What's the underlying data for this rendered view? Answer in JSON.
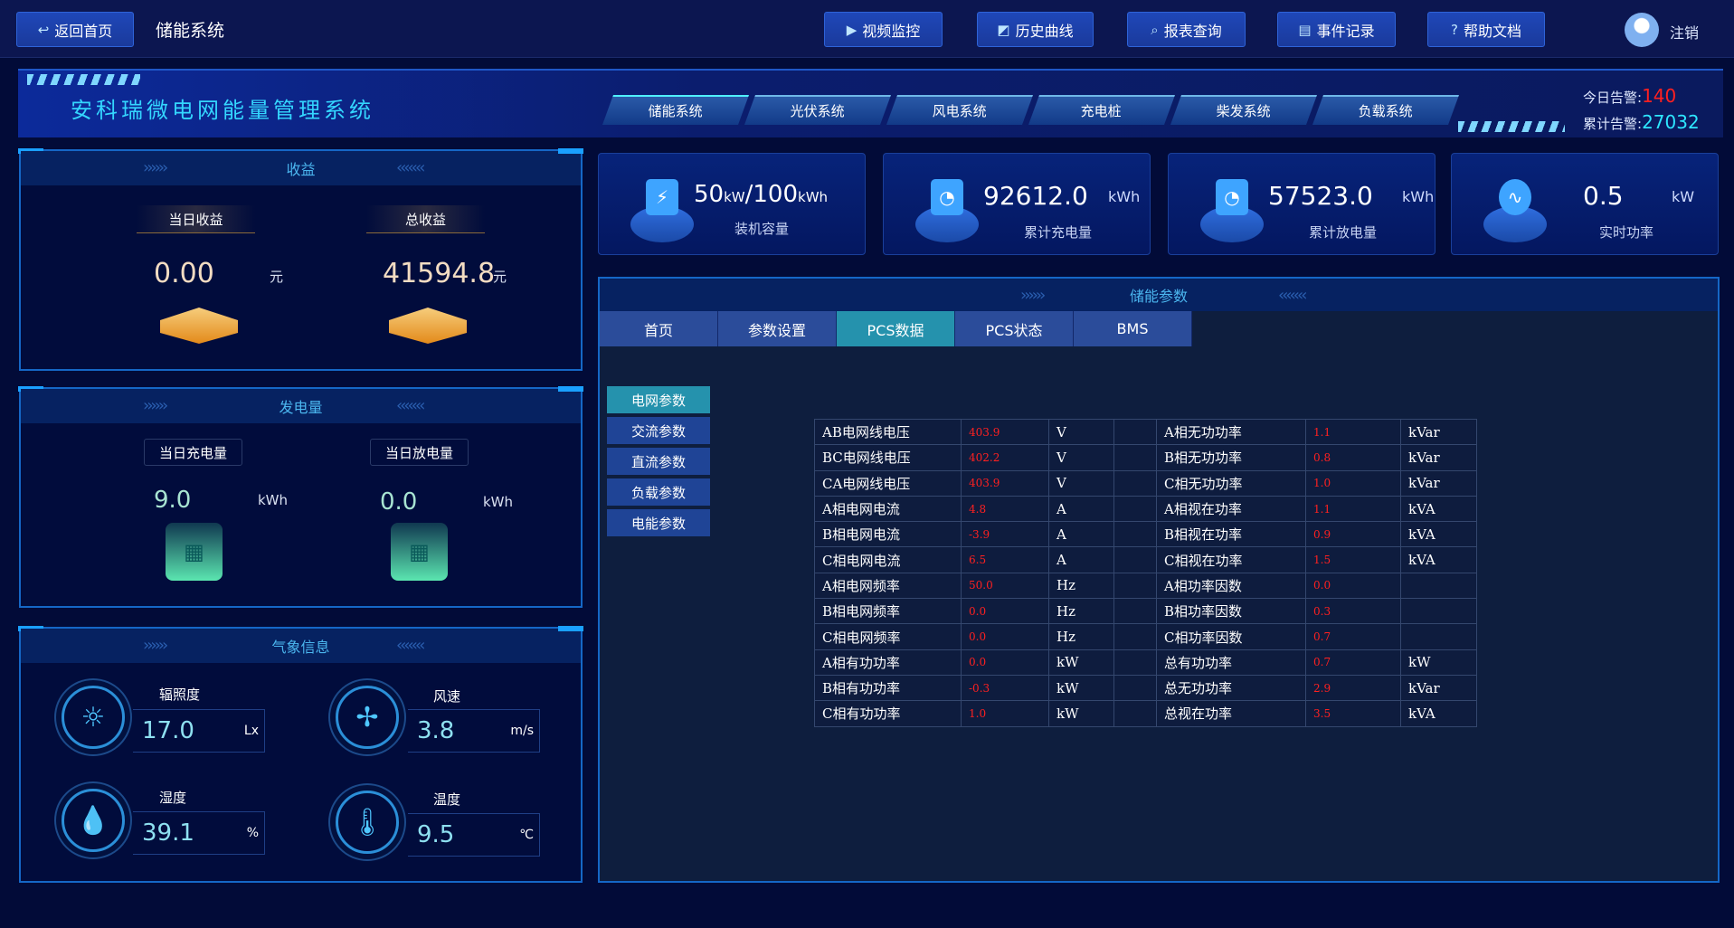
{
  "topbar": {
    "back": "返回首页",
    "title": "储能系统",
    "buttons": [
      {
        "label": "视频监控",
        "icon": "video-icon"
      },
      {
        "label": "历史曲线",
        "icon": "chart-icon"
      },
      {
        "label": "报表查询",
        "icon": "search-icon"
      },
      {
        "label": "事件记录",
        "icon": "document-icon"
      },
      {
        "label": "帮助文档",
        "icon": "help-icon"
      }
    ],
    "logout": "注销"
  },
  "banner": {
    "title": "安科瑞微电网能量管理系统",
    "nav": [
      "储能系统",
      "光伏系统",
      "风电系统",
      "充电桩",
      "柴发系统",
      "负载系统"
    ],
    "active_nav": 0,
    "today_alarm_label": "今日告警:",
    "today_alarm": "140",
    "total_alarm_label": "累计告警:",
    "total_alarm": "27032"
  },
  "income": {
    "title": "收益",
    "today_label": "当日收益",
    "today_value": "0.00",
    "total_label": "总收益",
    "total_value": "41594.8",
    "unit": "元"
  },
  "energy": {
    "title": "发电量",
    "charge_label": "当日充电量",
    "charge_value": "9.0",
    "discharge_label": "当日放电量",
    "discharge_value": "0.0",
    "unit": "kWh"
  },
  "weather": {
    "title": "气象信息",
    "items": [
      {
        "label": "辐照度",
        "value": "17.0",
        "unit": "Lx",
        "icon": "sun-icon"
      },
      {
        "label": "风速",
        "value": "3.8",
        "unit": "m/s",
        "icon": "fan-icon"
      },
      {
        "label": "湿度",
        "value": "39.1",
        "unit": "%",
        "icon": "droplet-icon"
      },
      {
        "label": "温度",
        "value": "9.5",
        "unit": "℃",
        "icon": "thermometer-icon"
      }
    ]
  },
  "cards": [
    {
      "value": "50",
      "unit": "kW",
      "value2": "/100",
      "unit2": "kWh",
      "label": "装机容量",
      "icon": "battery-icon"
    },
    {
      "value": "92612.0",
      "unit": "kWh",
      "label": "累计充电量",
      "icon": "gauge-icon"
    },
    {
      "value": "57523.0",
      "unit": "kWh",
      "label": "累计放电量",
      "icon": "gauge-icon"
    },
    {
      "value": "0.5",
      "unit": "kW",
      "label": "实时功率",
      "icon": "pulse-icon"
    }
  ],
  "main": {
    "title": "储能参数",
    "tabs": [
      "首页",
      "参数设置",
      "PCS数据",
      "PCS状态",
      "BMS"
    ],
    "active_tab": 2,
    "side": [
      "电网参数",
      "交流参数",
      "直流参数",
      "负载参数",
      "电能参数"
    ],
    "active_side": 0,
    "rows": [
      [
        "AB电网线电压",
        "403.9",
        "V",
        "A相无功功率",
        "1.1",
        "kVar"
      ],
      [
        "BC电网线电压",
        "402.2",
        "V",
        "B相无功功率",
        "0.8",
        "kVar"
      ],
      [
        "CA电网线电压",
        "403.9",
        "V",
        "C相无功功率",
        "1.0",
        "kVar"
      ],
      [
        "A相电网电流",
        "4.8",
        "A",
        "A相视在功率",
        "1.1",
        "kVA"
      ],
      [
        "B相电网电流",
        "-3.9",
        "A",
        "B相视在功率",
        "0.9",
        "kVA"
      ],
      [
        "C相电网电流",
        "6.5",
        "A",
        "C相视在功率",
        "1.5",
        "kVA"
      ],
      [
        "A相电网频率",
        "50.0",
        "Hz",
        "A相功率因数",
        "0.0",
        ""
      ],
      [
        "B相电网频率",
        "0.0",
        "Hz",
        "B相功率因数",
        "0.3",
        ""
      ],
      [
        "C相电网频率",
        "0.0",
        "Hz",
        "C相功率因数",
        "0.7",
        ""
      ],
      [
        "A相有功功率",
        "0.0",
        "kW",
        "总有功功率",
        "0.7",
        "kW"
      ],
      [
        "B相有功功率",
        "-0.3",
        "kW",
        "总无功功率",
        "2.9",
        "kVar"
      ],
      [
        "C相有功功率",
        "1.0",
        "kW",
        "总视在功率",
        "3.5",
        "kVA"
      ]
    ]
  },
  "colors": {
    "accent": "#2592ad",
    "alarm": "#ff2020",
    "total_alarm": "#2ee6ff",
    "title": "#34d6ff"
  }
}
